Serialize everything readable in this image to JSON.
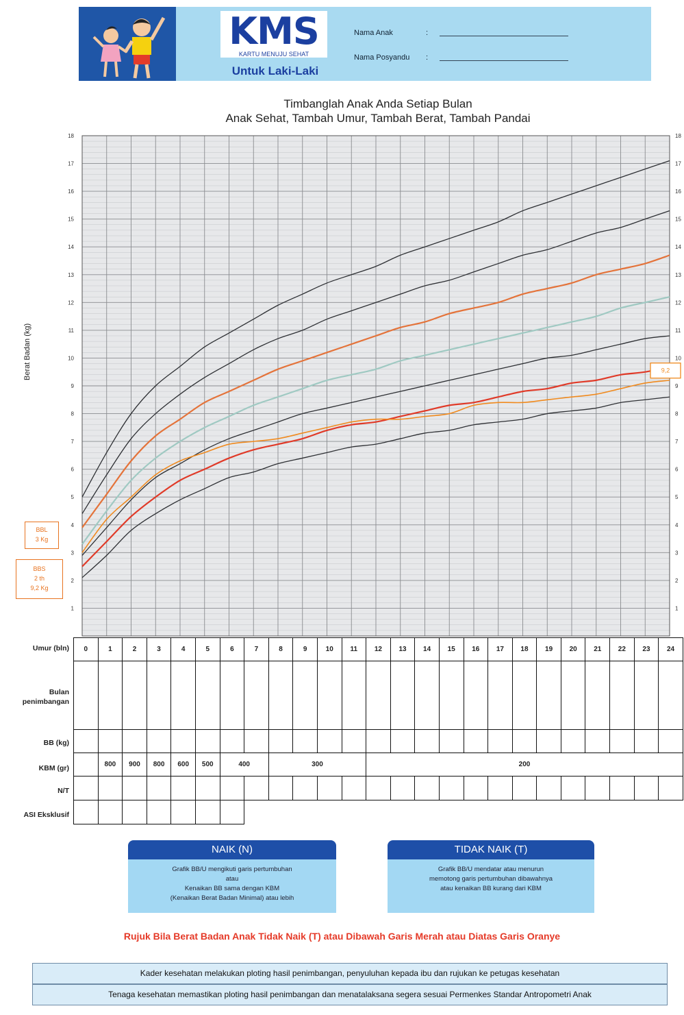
{
  "header": {
    "logo_text": "KMS",
    "logo_subtitle": "KARTU MENUJU SEHAT",
    "gender_label": "Untuk Laki-Laki",
    "fields": [
      {
        "label": "Nama Anak",
        "colon": ":"
      },
      {
        "label": "Nama Posyandu",
        "colon": ":"
      }
    ]
  },
  "chart_title_line1": "Timbanglah Anak Anda Setiap Bulan",
  "chart_title_line2": "Anak Sehat, Tambah Umur, Tambah Berat, Tambah Pandai",
  "colors": {
    "reference": "#2d2f33",
    "plus1": "#e4733a",
    "median": "#9fc9c2",
    "minus2": "#e03a28",
    "child": "#f08a1e",
    "grid": "#8a8c90",
    "paper": "#e7e8ea"
  },
  "chart_data": {
    "type": "line",
    "title": "Timbanglah Anak Anda Setiap Bulan",
    "ylabel": "Berat Badan (kg)",
    "xlabel": "Umur (bln)",
    "xlim": [
      0,
      24
    ],
    "ylim": [
      0,
      18
    ],
    "yticks": [
      "1",
      "2",
      "3",
      "4",
      "5",
      "6",
      "7",
      "8",
      "9",
      "10",
      "11",
      "12",
      "13",
      "14",
      "15",
      "16",
      "17",
      "18"
    ],
    "grid": true,
    "x": [
      0,
      1,
      2,
      3,
      4,
      5,
      6,
      7,
      8,
      9,
      10,
      11,
      12,
      13,
      14,
      15,
      16,
      17,
      18,
      19,
      20,
      21,
      22,
      23,
      24
    ],
    "series": [
      {
        "role": "line-plus3",
        "color_key": "reference",
        "values": [
          5.0,
          6.6,
          8.0,
          9.0,
          9.7,
          10.4,
          10.9,
          11.4,
          11.9,
          12.3,
          12.7,
          13.0,
          13.3,
          13.7,
          14.0,
          14.3,
          14.6,
          14.9,
          15.3,
          15.6,
          15.9,
          16.2,
          16.5,
          16.8,
          17.1
        ]
      },
      {
        "role": "line-plus2",
        "color_key": "reference",
        "values": [
          4.4,
          5.8,
          7.1,
          8.0,
          8.7,
          9.3,
          9.8,
          10.3,
          10.7,
          11.0,
          11.4,
          11.7,
          12.0,
          12.3,
          12.6,
          12.8,
          13.1,
          13.4,
          13.7,
          13.9,
          14.2,
          14.5,
          14.7,
          15.0,
          15.3
        ]
      },
      {
        "role": "line-plus1",
        "color_key": "plus1",
        "values": [
          3.9,
          5.1,
          6.3,
          7.2,
          7.8,
          8.4,
          8.8,
          9.2,
          9.6,
          9.9,
          10.2,
          10.5,
          10.8,
          11.1,
          11.3,
          11.6,
          11.8,
          12.0,
          12.3,
          12.5,
          12.7,
          13.0,
          13.2,
          13.4,
          13.7
        ]
      },
      {
        "role": "line-median",
        "color_key": "median",
        "values": [
          3.3,
          4.5,
          5.6,
          6.4,
          7.0,
          7.5,
          7.9,
          8.3,
          8.6,
          8.9,
          9.2,
          9.4,
          9.6,
          9.9,
          10.1,
          10.3,
          10.5,
          10.7,
          10.9,
          11.1,
          11.3,
          11.5,
          11.8,
          12.0,
          12.2
        ]
      },
      {
        "role": "line-minus1",
        "color_key": "reference",
        "values": [
          2.9,
          3.9,
          4.9,
          5.7,
          6.2,
          6.7,
          7.1,
          7.4,
          7.7,
          8.0,
          8.2,
          8.4,
          8.6,
          8.8,
          9.0,
          9.2,
          9.4,
          9.6,
          9.8,
          10.0,
          10.1,
          10.3,
          10.5,
          10.7,
          10.8
        ]
      },
      {
        "role": "line-minus2",
        "color_key": "minus2",
        "values": [
          2.5,
          3.4,
          4.3,
          5.0,
          5.6,
          6.0,
          6.4,
          6.7,
          6.9,
          7.1,
          7.4,
          7.6,
          7.7,
          7.9,
          8.1,
          8.3,
          8.4,
          8.6,
          8.8,
          8.9,
          9.1,
          9.2,
          9.4,
          9.5,
          9.7
        ]
      },
      {
        "role": "line-minus3",
        "color_key": "reference",
        "values": [
          2.1,
          2.9,
          3.8,
          4.4,
          4.9,
          5.3,
          5.7,
          5.9,
          6.2,
          6.4,
          6.6,
          6.8,
          6.9,
          7.1,
          7.3,
          7.4,
          7.6,
          7.7,
          7.8,
          8.0,
          8.1,
          8.2,
          8.4,
          8.5,
          8.6
        ]
      },
      {
        "role": "child-weight",
        "color_key": "child",
        "values": [
          3.0,
          4.2,
          5.0,
          5.8,
          6.3,
          6.6,
          6.9,
          7.0,
          7.1,
          7.3,
          7.5,
          7.7,
          7.8,
          7.8,
          7.9,
          8.0,
          8.3,
          8.4,
          8.4,
          8.5,
          8.6,
          8.7,
          8.9,
          9.1,
          9.2
        ]
      }
    ],
    "annotations": [
      {
        "text": "9,2",
        "x": 24,
        "y": 9.2
      }
    ]
  },
  "side_boxes": {
    "bbl": {
      "line1": "BBL",
      "line2": "3 Kg"
    },
    "bbs": {
      "line1": "BBS",
      "line2": "2 th",
      "line3": "9,2 Kg"
    }
  },
  "table": {
    "umur_label": "Umur (bln)",
    "months": [
      "0",
      "1",
      "2",
      "3",
      "4",
      "5",
      "6",
      "7",
      "8",
      "9",
      "10",
      "11",
      "12",
      "13",
      "14",
      "15",
      "16",
      "17",
      "18",
      "19",
      "20",
      "21",
      "22",
      "23",
      "24"
    ],
    "bulan_label_1": "Bulan",
    "bulan_label_2": "penimbangan",
    "bb_label": "BB (kg)",
    "kbm_label": "KBM (gr)",
    "kbm_values": [
      {
        "text": "",
        "span": 1
      },
      {
        "text": "800",
        "span": 1
      },
      {
        "text": "900",
        "span": 1
      },
      {
        "text": "800",
        "span": 1
      },
      {
        "text": "600",
        "span": 1
      },
      {
        "text": "500",
        "span": 1
      },
      {
        "text": "400",
        "span": 2
      },
      {
        "text": "300",
        "span": 4
      },
      {
        "text": "200",
        "span": 13
      }
    ],
    "nt_label": "N/T",
    "asi_label": "ASI Eksklusif"
  },
  "naik": {
    "title": "NAIK (N)",
    "text1": "Grafik BB/U mengikuti garis pertumbuhan",
    "text2": "atau",
    "text3": "Kenaikan BB sama dengan KBM",
    "text4": "(Kenaikan Berat Badan Minimal) atau lebih"
  },
  "tidak_naik": {
    "title": "TIDAK NAIK (T)",
    "text1": "Grafik BB/U mendatar atau menurun",
    "text2": "memotong garis pertumbuhan dibawahnya",
    "text3": "atau kenaikan BB kurang dari KBM"
  },
  "refer_text": "Rujuk Bila Berat Badan Anak Tidak Naik (T) atau Dibawah Garis Merah atau Diatas Garis Oranye",
  "notes": [
    "Kader kesehatan melakukan ploting hasil penimbangan, penyuluhan kepada ibu dan rujukan ke petugas kesehatan",
    "Tenaga kesehatan memastikan ploting hasil penimbangan dan menatalaksana segera sesuai Permenkes Standar Antropometri Anak"
  ]
}
